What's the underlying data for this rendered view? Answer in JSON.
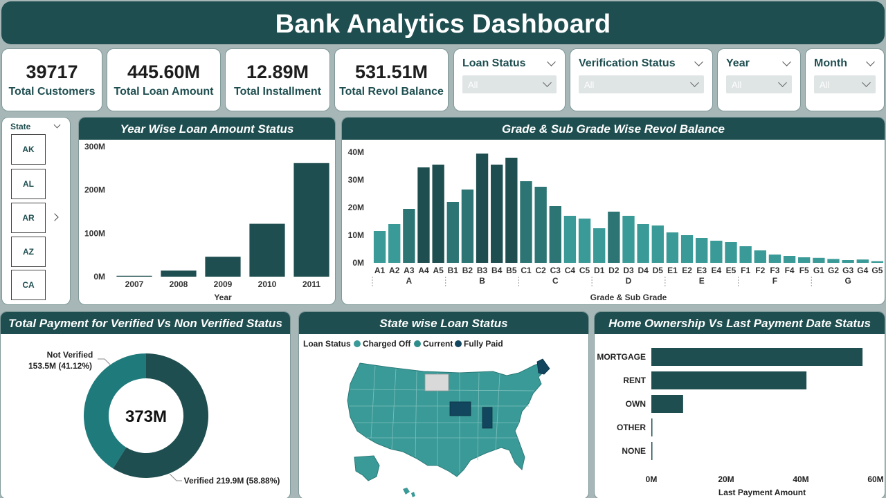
{
  "header": {
    "title": "Bank Analytics Dashboard"
  },
  "kpis": [
    {
      "value": "39717",
      "label": "Total Customers"
    },
    {
      "value": "445.60M",
      "label": "Total Loan Amount"
    },
    {
      "value": "12.89M",
      "label": "Total Installment"
    },
    {
      "value": "531.51M",
      "label": "Total Revol Balance"
    }
  ],
  "slicers": [
    {
      "title": "Loan Status",
      "value": "All"
    },
    {
      "title": "Verification Status",
      "value": "All"
    },
    {
      "title": "Year",
      "value": "All"
    },
    {
      "title": "Month",
      "value": "All"
    }
  ],
  "state_slicer": {
    "title": "State",
    "items": [
      "AK",
      "AL",
      "AR",
      "AZ",
      "CA"
    ]
  },
  "colors": {
    "dark": "#1f4e50",
    "teal": "#2f8d8c",
    "medium": "#3a9a97"
  },
  "chart_data": [
    {
      "type": "bar",
      "title": "Year Wise Loan Amount Status",
      "xlabel": "Year",
      "ylabel": "",
      "categories": [
        "2007",
        "2008",
        "2009",
        "2010",
        "2011"
      ],
      "values": [
        2,
        14,
        46,
        122,
        262
      ],
      "ytick_labels": [
        "0M",
        "100M",
        "200M",
        "300M"
      ],
      "ylim": [
        0,
        300
      ]
    },
    {
      "type": "bar",
      "title": "Grade & Sub Grade Wise Revol Balance",
      "xlabel": "Grade & Sub Grade",
      "ylabel": "",
      "categories": [
        "A1",
        "A2",
        "A3",
        "A4",
        "A5",
        "B1",
        "B2",
        "B3",
        "B4",
        "B5",
        "C1",
        "C2",
        "C3",
        "C4",
        "C5",
        "D1",
        "D2",
        "D3",
        "D4",
        "D5",
        "E1",
        "E2",
        "E3",
        "E4",
        "E5",
        "F1",
        "F2",
        "F3",
        "F4",
        "F5",
        "G1",
        "G2",
        "G3",
        "G4",
        "G5"
      ],
      "groups": [
        "A",
        "B",
        "C",
        "D",
        "E",
        "F",
        "G"
      ],
      "values": [
        11.5,
        14,
        19.5,
        34.5,
        35.5,
        22,
        26.5,
        39.5,
        35.5,
        38,
        29.5,
        27.5,
        20.5,
        17,
        16,
        12.5,
        18.5,
        17,
        14,
        13.5,
        11,
        10,
        9,
        8,
        7.5,
        6,
        4.5,
        3,
        2.5,
        2,
        1.8,
        1.4,
        1,
        1.2,
        0.6
      ],
      "ytick_labels": [
        "0M",
        "10M",
        "20M",
        "30M",
        "40M"
      ],
      "ylim": [
        0,
        42
      ]
    },
    {
      "type": "pie",
      "title": "Total Payment for Verified Vs Non Verified Status",
      "center_label": "373M",
      "slices": [
        {
          "name": "Not Verified",
          "value": 153.5,
          "label": "153.5M (41.12%)"
        },
        {
          "name": "Verified",
          "value": 219.9,
          "label": "Verified 219.9M (58.88%)"
        }
      ]
    },
    {
      "type": "map",
      "title": "State wise Loan Status",
      "legend_title": "Loan Status",
      "legend": [
        "Charged Off",
        "Current",
        "Fully Paid"
      ]
    },
    {
      "type": "bar",
      "title": "Home Ownership Vs Last Payment Date Status",
      "orientation": "horizontal",
      "xlabel": "Last Payment Amount",
      "ylabel": "",
      "categories": [
        "MORTGAGE",
        "RENT",
        "OWN",
        "OTHER",
        "NONE"
      ],
      "values": [
        56.5,
        41.5,
        8.5,
        0.2,
        0.05
      ],
      "xtick_labels": [
        "0M",
        "20M",
        "40M",
        "60M"
      ],
      "xlim": [
        0,
        60
      ]
    }
  ]
}
